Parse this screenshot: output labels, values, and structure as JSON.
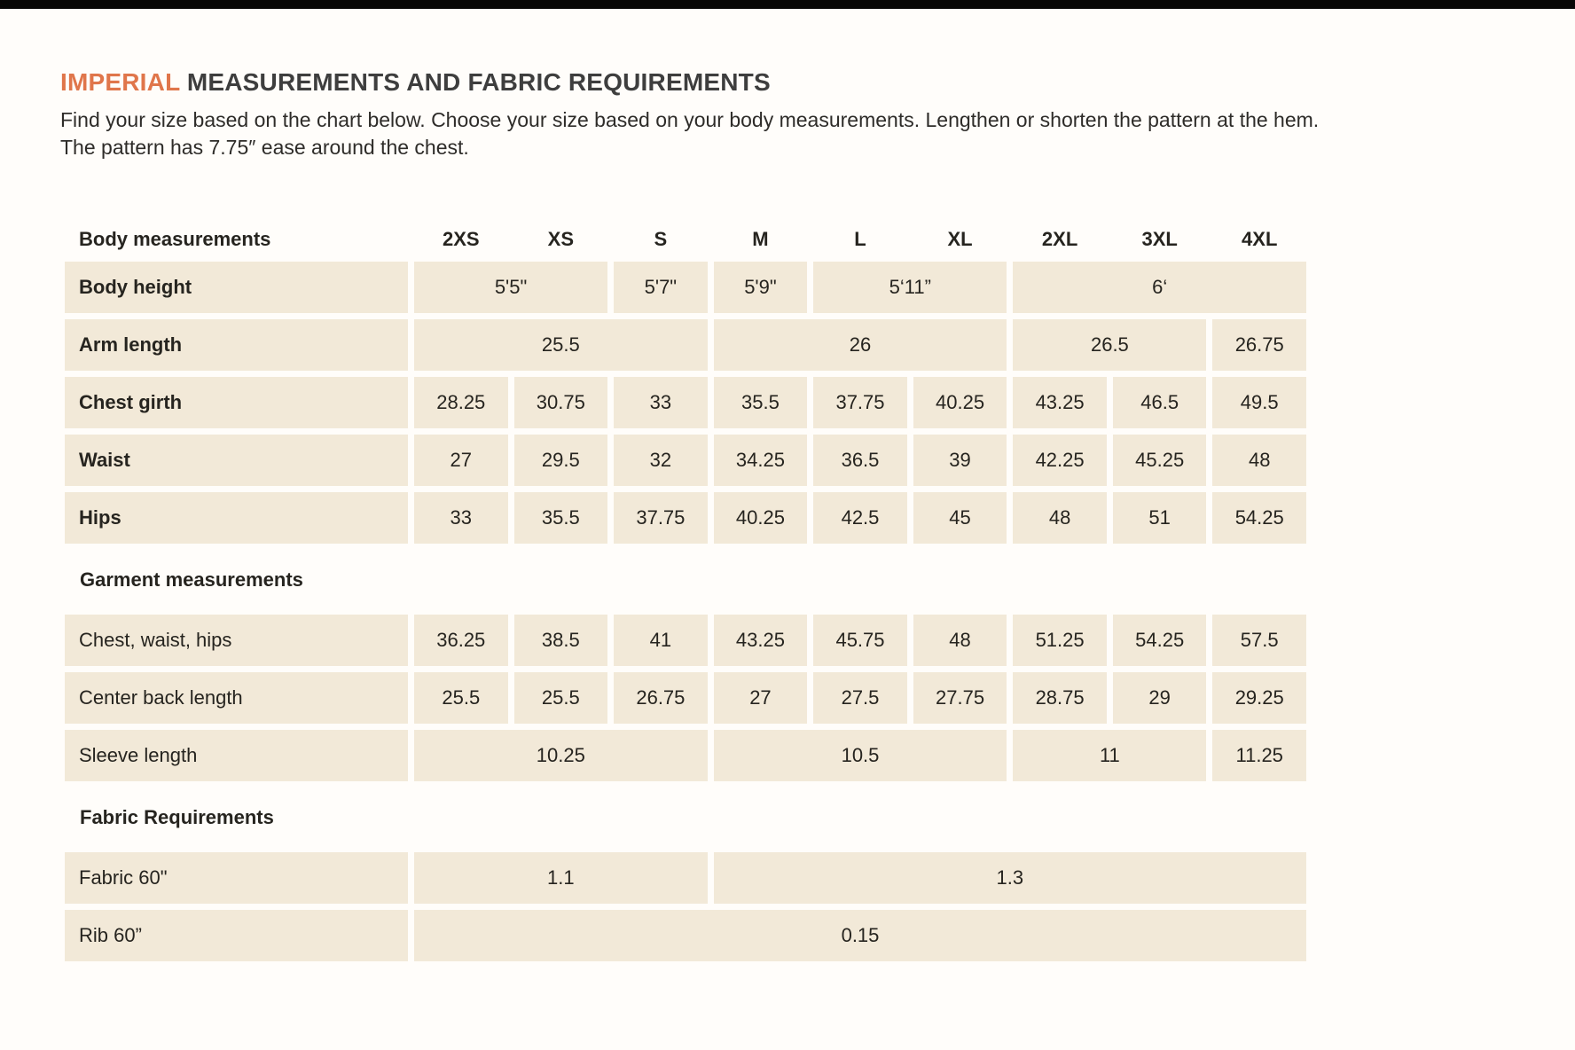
{
  "page": {
    "title_highlight": "IMPERIAL",
    "title_rest": " MEASUREMENTS AND FABRIC REQUIREMENTS",
    "description": "Find your size based on the chart below. Choose your size based on your body measurements. Lengthen or shorten the pattern at the hem. The pattern has 7.75″ ease around the chest."
  },
  "colors": {
    "accent_orange": "#e0764b",
    "cell_cream": "#f2e9d8",
    "text_dark": "#26241f",
    "topbar_black": "#070707"
  },
  "table": {
    "header": {
      "label": "Body measurements",
      "sizes": [
        "2XS",
        "XS",
        "S",
        "M",
        "L",
        "XL",
        "2XL",
        "3XL",
        "4XL"
      ]
    },
    "sections": [
      {
        "title": "",
        "bold_labels": true,
        "rows": [
          {
            "label": "Body height",
            "cells": [
              {
                "value": "5'5\"",
                "span": 2
              },
              {
                "value": "5'7\"",
                "span": 1
              },
              {
                "value": "5'9\"",
                "span": 1
              },
              {
                "value": "5‘11”",
                "span": 2
              },
              {
                "value": "6‘",
                "span": 3
              }
            ]
          },
          {
            "label": "Arm length",
            "cells": [
              {
                "value": "25.5",
                "span": 3
              },
              {
                "value": "26",
                "span": 3
              },
              {
                "value": "26.5",
                "span": 2
              },
              {
                "value": "26.75",
                "span": 1
              }
            ]
          },
          {
            "label": "Chest girth",
            "cells": [
              {
                "value": "28.25",
                "span": 1
              },
              {
                "value": "30.75",
                "span": 1
              },
              {
                "value": "33",
                "span": 1
              },
              {
                "value": "35.5",
                "span": 1
              },
              {
                "value": "37.75",
                "span": 1
              },
              {
                "value": "40.25",
                "span": 1
              },
              {
                "value": "43.25",
                "span": 1
              },
              {
                "value": "46.5",
                "span": 1
              },
              {
                "value": "49.5",
                "span": 1
              }
            ]
          },
          {
            "label": "Waist",
            "cells": [
              {
                "value": "27",
                "span": 1
              },
              {
                "value": "29.5",
                "span": 1
              },
              {
                "value": "32",
                "span": 1
              },
              {
                "value": "34.25",
                "span": 1
              },
              {
                "value": "36.5",
                "span": 1
              },
              {
                "value": "39",
                "span": 1
              },
              {
                "value": "42.25",
                "span": 1
              },
              {
                "value": "45.25",
                "span": 1
              },
              {
                "value": "48",
                "span": 1
              }
            ]
          },
          {
            "label": "Hips",
            "cells": [
              {
                "value": "33",
                "span": 1
              },
              {
                "value": "35.5",
                "span": 1
              },
              {
                "value": "37.75",
                "span": 1
              },
              {
                "value": "40.25",
                "span": 1
              },
              {
                "value": "42.5",
                "span": 1
              },
              {
                "value": "45",
                "span": 1
              },
              {
                "value": "48",
                "span": 1
              },
              {
                "value": "51",
                "span": 1
              },
              {
                "value": "54.25",
                "span": 1
              }
            ]
          }
        ]
      },
      {
        "title": "Garment measurements",
        "bold_labels": false,
        "rows": [
          {
            "label": "Chest, waist, hips",
            "cells": [
              {
                "value": "36.25",
                "span": 1
              },
              {
                "value": "38.5",
                "span": 1
              },
              {
                "value": "41",
                "span": 1
              },
              {
                "value": "43.25",
                "span": 1
              },
              {
                "value": "45.75",
                "span": 1
              },
              {
                "value": "48",
                "span": 1
              },
              {
                "value": "51.25",
                "span": 1
              },
              {
                "value": "54.25",
                "span": 1
              },
              {
                "value": "57.5",
                "span": 1
              }
            ]
          },
          {
            "label": "Center back length",
            "cells": [
              {
                "value": "25.5",
                "span": 1
              },
              {
                "value": "25.5",
                "span": 1
              },
              {
                "value": "26.75",
                "span": 1
              },
              {
                "value": "27",
                "span": 1
              },
              {
                "value": "27.5",
                "span": 1
              },
              {
                "value": "27.75",
                "span": 1
              },
              {
                "value": "28.75",
                "span": 1
              },
              {
                "value": "29",
                "span": 1
              },
              {
                "value": "29.25",
                "span": 1
              }
            ]
          },
          {
            "label": "Sleeve length",
            "cells": [
              {
                "value": "10.25",
                "span": 3
              },
              {
                "value": "10.5",
                "span": 3
              },
              {
                "value": "11",
                "span": 2
              },
              {
                "value": "11.25",
                "span": 1
              }
            ]
          }
        ]
      },
      {
        "title": "Fabric Requirements",
        "bold_labels": false,
        "rows": [
          {
            "label": "Fabric 60\"",
            "cells": [
              {
                "value": "1.1",
                "span": 3
              },
              {
                "value": "1.3",
                "span": 6
              }
            ]
          },
          {
            "label": "Rib 60”",
            "cells": [
              {
                "value": "0.15",
                "span": 9
              }
            ]
          }
        ]
      }
    ]
  }
}
